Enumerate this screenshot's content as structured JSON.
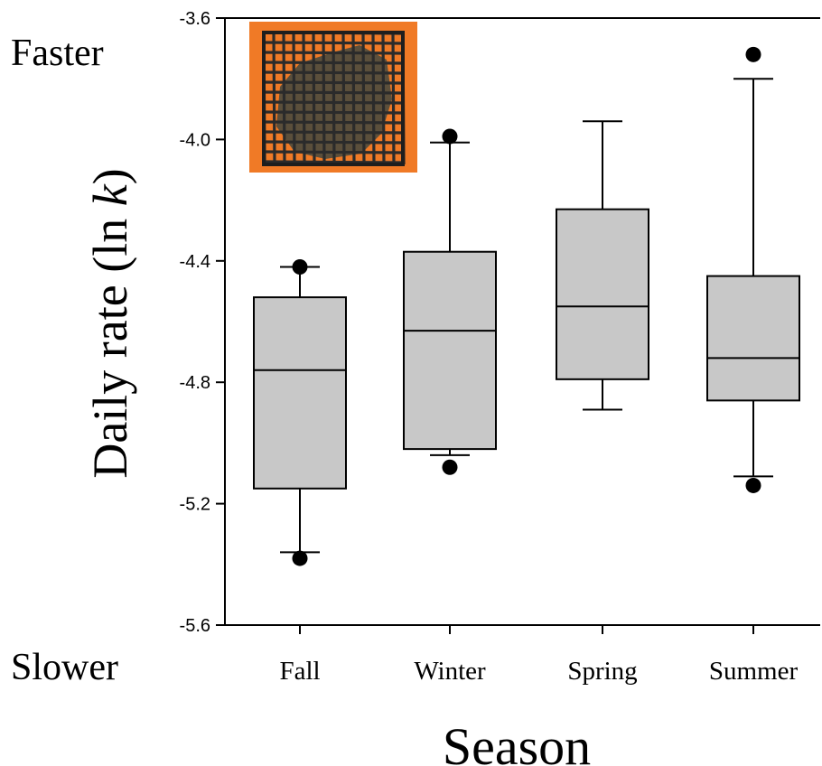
{
  "labels": {
    "faster": "Faster",
    "slower": "Slower"
  },
  "inset_photo": {
    "icon": "mesh-litterbag-photo",
    "background_color": "#f07a26",
    "mesh_color": "#2b2b2b"
  },
  "chart_data": {
    "type": "box",
    "xlabel": "Season",
    "ylabel_prefix": "Daily rate (ln ",
    "ylabel_var": "k",
    "ylabel_suffix": ")",
    "ylim": [
      -5.6,
      -3.6
    ],
    "yticks": [
      -3.6,
      -4.0,
      -4.4,
      -4.8,
      -5.2,
      -5.6
    ],
    "ytick_labels": [
      "-3.6",
      "-4.0",
      "-4.4",
      "-4.8",
      "-5.2",
      "-5.6"
    ],
    "categories": [
      "Fall",
      "Winter",
      "Spring",
      "Summer"
    ],
    "box_color": "#c8c8c8",
    "grid": false,
    "boxes": [
      {
        "name": "Fall",
        "whisker_low": -5.36,
        "q1": -5.15,
        "median": -4.76,
        "q3": -4.52,
        "whisker_high": -4.42,
        "outliers": [
          -5.38,
          -4.42
        ]
      },
      {
        "name": "Winter",
        "whisker_low": -5.04,
        "q1": -5.02,
        "median": -4.63,
        "q3": -4.37,
        "whisker_high": -4.01,
        "outliers": [
          -5.08,
          -3.99
        ]
      },
      {
        "name": "Spring",
        "whisker_low": -4.89,
        "q1": -4.79,
        "median": -4.55,
        "q3": -4.23,
        "whisker_high": -3.94,
        "outliers": []
      },
      {
        "name": "Summer",
        "whisker_low": -5.11,
        "q1": -4.86,
        "median": -4.72,
        "q3": -4.45,
        "whisker_high": -3.8,
        "outliers": [
          -5.14,
          -3.72
        ]
      }
    ]
  }
}
